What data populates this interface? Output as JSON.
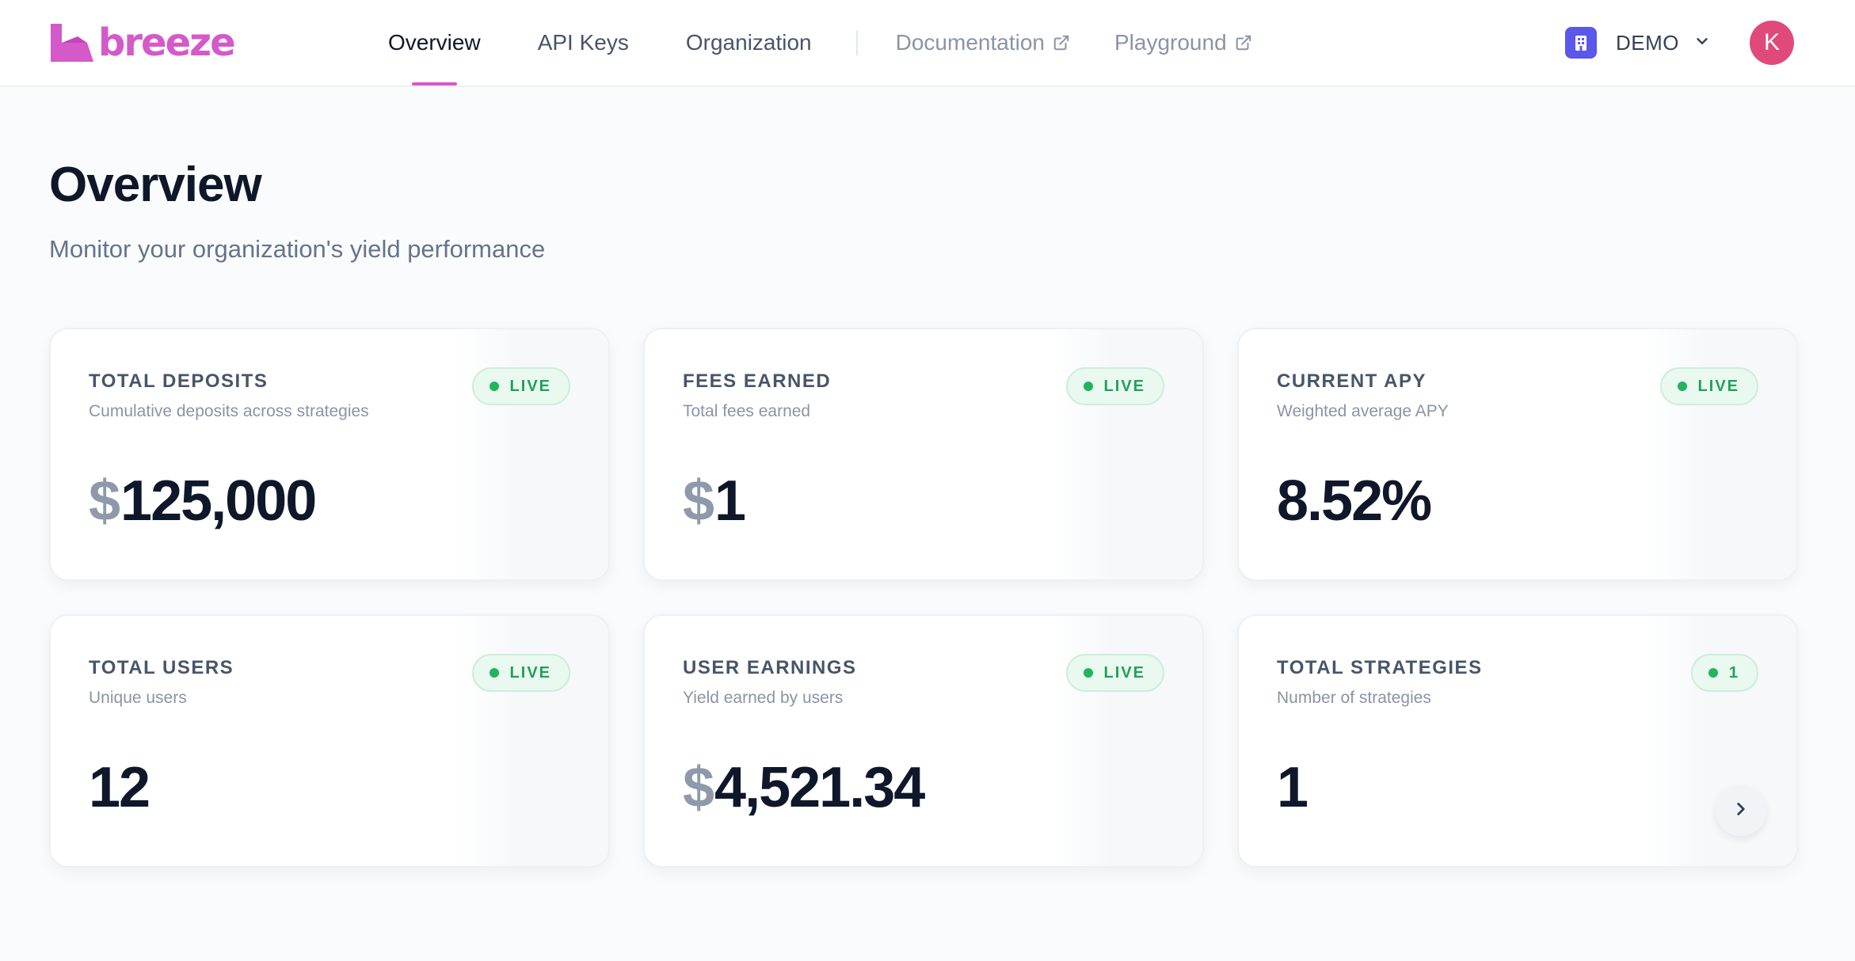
{
  "brand": {
    "name": "breeze",
    "color": "#d459c9"
  },
  "nav": {
    "items": [
      {
        "label": "Overview",
        "active": true
      },
      {
        "label": "API Keys",
        "active": false
      },
      {
        "label": "Organization",
        "active": false
      }
    ],
    "external": [
      {
        "label": "Documentation",
        "icon": "external-link-icon"
      },
      {
        "label": "Playground",
        "icon": "external-link-icon"
      }
    ]
  },
  "org": {
    "name": "DEMO",
    "icon": "building-icon",
    "color": "#5b57ea"
  },
  "user": {
    "initial": "K",
    "color": "#e04a7a"
  },
  "page": {
    "title": "Overview",
    "subtitle": "Monitor your organization's yield performance"
  },
  "cards": [
    {
      "title": "TOTAL DEPOSITS",
      "description": "Cumulative deposits across strategies",
      "badge": "LIVE",
      "currency": "$",
      "value": "125,000"
    },
    {
      "title": "FEES EARNED",
      "description": "Total fees earned",
      "badge": "LIVE",
      "currency": "$",
      "value": "1"
    },
    {
      "title": "CURRENT APY",
      "description": "Weighted average APY",
      "badge": "LIVE",
      "currency": "",
      "value": "8.52%"
    },
    {
      "title": "TOTAL USERS",
      "description": "Unique users",
      "badge": "LIVE",
      "currency": "",
      "value": "12"
    },
    {
      "title": "USER EARNINGS",
      "description": "Yield earned by users",
      "badge": "LIVE",
      "currency": "$",
      "value": "4,521.34"
    },
    {
      "title": "TOTAL STRATEGIES",
      "description": "Number of strategies",
      "badge": "1",
      "currency": "",
      "value": "1",
      "action_icon": "chevron-right-icon"
    }
  ],
  "colors": {
    "live_green": "#22b35e",
    "text_primary": "#0f172a",
    "text_muted": "#64748b"
  }
}
